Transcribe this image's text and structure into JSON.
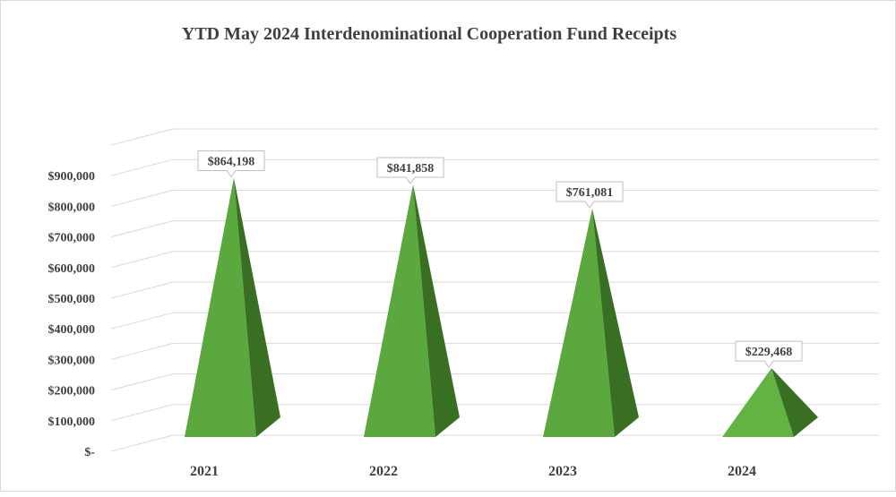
{
  "chart_data": {
    "type": "bar",
    "style": "3d-pyramid",
    "title": "YTD May 2024 Interdenominational Cooperation Fund Receipts",
    "categories": [
      "2021",
      "2022",
      "2023",
      "2024"
    ],
    "values": [
      864198,
      841858,
      761081,
      229468
    ],
    "data_labels": [
      "$864,198",
      "$841,858",
      "$761,081",
      "$229,468"
    ],
    "y_ticks": [
      0,
      100000,
      200000,
      300000,
      400000,
      500000,
      600000,
      700000,
      800000,
      900000
    ],
    "y_tick_labels": [
      "$-",
      "$100,000",
      "$200,000",
      "$300,000",
      "$400,000",
      "$500,000",
      "$600,000",
      "$700,000",
      "$800,000",
      "$900,000"
    ],
    "ylim": [
      0,
      1000000
    ],
    "grid": true,
    "legend": "none",
    "colors": {
      "front": "#5aa83e",
      "side": "#386f22",
      "grid": "#d9d9d9",
      "text": "#404040"
    }
  }
}
